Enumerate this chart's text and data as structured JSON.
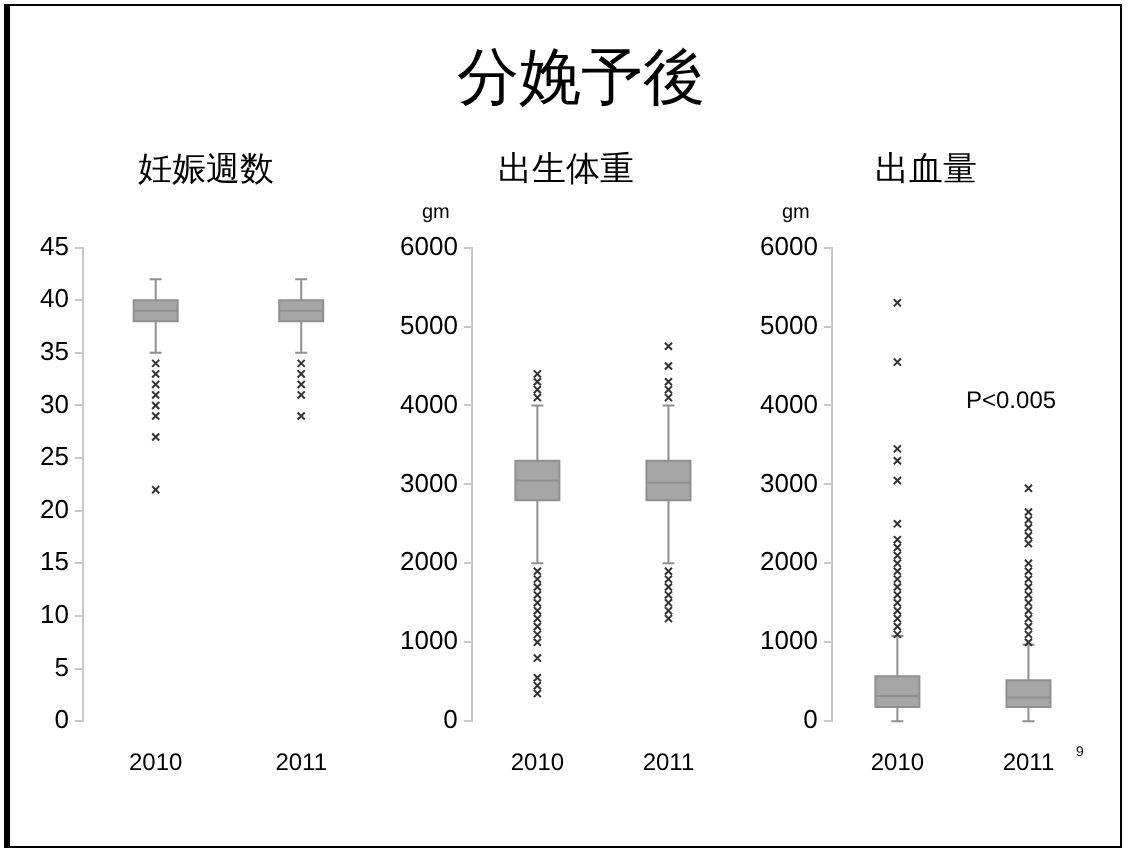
{
  "chart_data": [
    {
      "type": "box",
      "title": "妊娠週数",
      "annotations": [
        "分娩予後"
      ],
      "categories": [
        "2010",
        "2011"
      ],
      "ylim": [
        0,
        45
      ],
      "yticks": [
        0,
        5,
        10,
        15,
        20,
        25,
        30,
        35,
        40,
        45
      ],
      "grid": false,
      "marker": "cross",
      "color": "#a6a6a6",
      "boxes": [
        {
          "low": 35,
          "q1": 38,
          "median": 39,
          "q3": 40,
          "high": 42,
          "outliers": [
            34,
            33,
            32,
            31,
            30,
            29,
            27,
            22
          ]
        },
        {
          "low": 35,
          "q1": 38,
          "median": 39,
          "q3": 40,
          "high": 42,
          "outliers": [
            34,
            33,
            32,
            31,
            29
          ]
        }
      ]
    },
    {
      "type": "box",
      "title": "出生体重",
      "ylabel": "gm",
      "categories": [
        "2010",
        "2011"
      ],
      "ylim": [
        0,
        6000
      ],
      "yticks": [
        0,
        1000,
        2000,
        3000,
        4000,
        5000,
        6000
      ],
      "grid": false,
      "marker": "cross",
      "color": "#a6a6a6",
      "boxes": [
        {
          "low": 2000,
          "q1": 2800,
          "median": 3050,
          "q3": 3300,
          "high": 4000,
          "outliers": [
            4100,
            4200,
            4300,
            4400,
            1900,
            1800,
            1700,
            1600,
            1500,
            1400,
            1300,
            1200,
            1100,
            1000,
            800,
            550,
            450,
            350
          ]
        },
        {
          "low": 2000,
          "q1": 2800,
          "median": 3020,
          "q3": 3300,
          "high": 4000,
          "outliers": [
            4100,
            4200,
            4300,
            4500,
            4750,
            1900,
            1800,
            1700,
            1600,
            1500,
            1400,
            1300
          ]
        }
      ]
    },
    {
      "type": "box",
      "title": "出血量",
      "ylabel": "gm",
      "annotations": [
        "P<0.005",
        "9"
      ],
      "categories": [
        "2010",
        "2011"
      ],
      "ylim": [
        0,
        6000
      ],
      "yticks": [
        0,
        1000,
        2000,
        3000,
        4000,
        5000,
        6000
      ],
      "grid": false,
      "marker": "cross",
      "color": "#a6a6a6",
      "boxes": [
        {
          "low": 0,
          "q1": 180,
          "median": 320,
          "q3": 570,
          "high": 1080,
          "outliers": [
            1100,
            1200,
            1300,
            1400,
            1500,
            1600,
            1700,
            1800,
            1900,
            2000,
            2100,
            2200,
            2300,
            2500,
            3050,
            3300,
            3450,
            4550,
            5300
          ]
        },
        {
          "low": 0,
          "q1": 180,
          "median": 300,
          "q3": 520,
          "high": 970,
          "outliers": [
            1000,
            1100,
            1200,
            1300,
            1400,
            1500,
            1600,
            1700,
            1800,
            1900,
            2000,
            2250,
            2350,
            2450,
            2550,
            2650,
            2950
          ]
        }
      ]
    }
  ]
}
